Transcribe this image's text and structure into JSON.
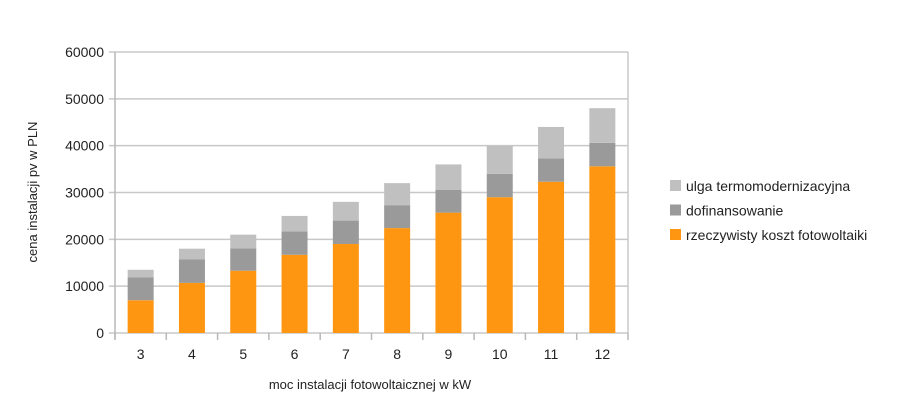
{
  "chart_data": {
    "type": "bar",
    "stacked": true,
    "xlabel": "moc instalacji fotowoltaicznej w kW",
    "ylabel": "cena instalacji pv w PLN",
    "ylim": [
      0,
      60000
    ],
    "yticks": [
      0,
      10000,
      20000,
      30000,
      40000,
      50000,
      60000
    ],
    "grid": true,
    "legend": "right",
    "categories": [
      "3",
      "4",
      "5",
      "6",
      "7",
      "8",
      "9",
      "10",
      "11",
      "12"
    ],
    "series": [
      {
        "name": "rzeczywisty koszt fotowoltaiki",
        "color": "#ff9612",
        "values": [
          7000,
          10700,
          13300,
          16700,
          19000,
          22400,
          25700,
          29000,
          32300,
          35600
        ]
      },
      {
        "name": "dofinansowanie",
        "color": "#9a9a9a",
        "values": [
          4900,
          5000,
          4800,
          5000,
          5000,
          4900,
          4900,
          5000,
          5000,
          5000
        ]
      },
      {
        "name": "ulga termomodernizacyjna",
        "color": "#c0c0c0",
        "values": [
          1600,
          2300,
          2900,
          3300,
          4000,
          4700,
          5400,
          6000,
          6700,
          7400
        ]
      }
    ]
  }
}
